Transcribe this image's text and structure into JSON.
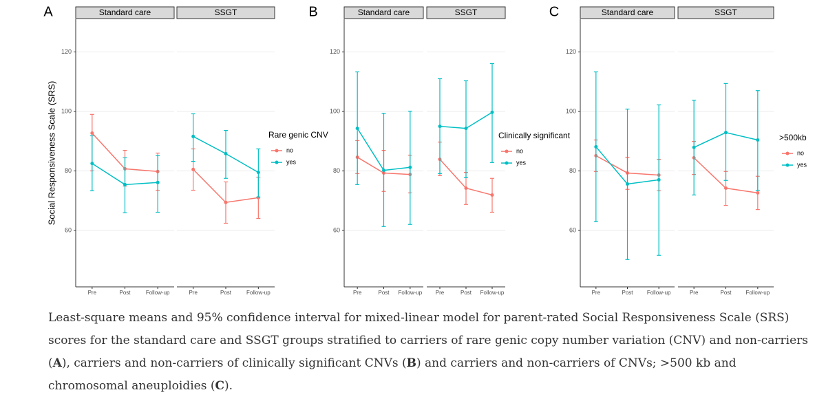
{
  "chart_data": [
    {
      "type": "line",
      "panel": "A",
      "ylabel": "Social Responsiveness Scale (SRS)",
      "legend_title": "Rare genic CNV",
      "facets": [
        "Standard care",
        "SSGT"
      ],
      "categories": [
        "Pre",
        "Post",
        "Follow-up"
      ],
      "ylim": [
        41,
        131
      ],
      "yticks": [
        60,
        80,
        100,
        120
      ],
      "grid": true,
      "series": [
        {
          "name": "no",
          "color": "#F8766D",
          "facets": [
            {
              "values": [
                92.7,
                80.7,
                79.8
              ],
              "lower": [
                80,
                74.9,
                73.5
              ],
              "upper": [
                99,
                86.9,
                86
              ]
            },
            {
              "values": [
                80.5,
                69.4,
                71
              ],
              "lower": [
                73.5,
                62.4,
                64
              ],
              "upper": [
                87.4,
                76.3,
                77.9
              ]
            }
          ]
        },
        {
          "name": "yes",
          "color": "#00BFC4",
          "facets": [
            {
              "values": [
                82.5,
                75.4,
                76.1
              ],
              "lower": [
                73.3,
                65.9,
                66.1
              ],
              "upper": [
                91.8,
                84.4,
                85.1
              ]
            },
            {
              "values": [
                91.6,
                85.8,
                79.5
              ],
              "lower": [
                83.2,
                77.5,
                71.2
              ],
              "upper": [
                99.2,
                93.6,
                87.4
              ]
            }
          ]
        }
      ]
    },
    {
      "type": "line",
      "panel": "B",
      "legend_title": "Clinically significant",
      "facets": [
        "Standard care",
        "SSGT"
      ],
      "categories": [
        "Pre",
        "Post",
        "Follow-up"
      ],
      "ylim": [
        41,
        131
      ],
      "yticks": [
        60,
        80,
        100,
        120
      ],
      "grid": true,
      "series": [
        {
          "name": "no",
          "color": "#F8766D",
          "facets": [
            {
              "values": [
                84.6,
                79.3,
                78.8
              ],
              "lower": [
                79.1,
                73.1,
                72.6
              ],
              "upper": [
                90.2,
                86.9,
                85.3
              ]
            },
            {
              "values": [
                83.9,
                74.2,
                71.9
              ],
              "lower": [
                78.4,
                68.7,
                66.1
              ],
              "upper": [
                89.7,
                79.5,
                77.5
              ]
            }
          ]
        },
        {
          "name": "yes",
          "color": "#00BFC4",
          "facets": [
            {
              "values": [
                94.3,
                80.2,
                81.2
              ],
              "lower": [
                75.4,
                61.3,
                62
              ],
              "upper": [
                113.3,
                99.4,
                100.1
              ]
            },
            {
              "values": [
                95,
                94.3,
                99.7
              ],
              "lower": [
                79.1,
                77.7,
                82.8
              ],
              "upper": [
                111,
                110.3,
                116.1
              ]
            }
          ]
        }
      ]
    },
    {
      "type": "line",
      "panel": "C",
      "legend_title": ">500kb",
      "facets": [
        "Standard care",
        "SSGT"
      ],
      "categories": [
        "Pre",
        "Post",
        "Follow-up"
      ],
      "ylim": [
        41,
        131
      ],
      "yticks": [
        60,
        80,
        100,
        120
      ],
      "grid": true,
      "series": [
        {
          "name": "no",
          "color": "#F8766D",
          "facets": [
            {
              "values": [
                85.1,
                79.3,
                78.6
              ],
              "lower": [
                79.8,
                73.8,
                73.3
              ],
              "upper": [
                90.4,
                84.6,
                83.9
              ]
            },
            {
              "values": [
                84.4,
                74.2,
                72.6
              ],
              "lower": [
                78.8,
                68.4,
                67
              ],
              "upper": [
                89.9,
                79.8,
                78.2
              ]
            }
          ]
        },
        {
          "name": "yes",
          "color": "#00BFC4",
          "facets": [
            {
              "values": [
                88.1,
                75.6,
                77
              ],
              "lower": [
                62.9,
                50.2,
                51.6
              ],
              "upper": [
                113.3,
                100.8,
                102.2
              ]
            },
            {
              "values": [
                87.9,
                92.9,
                90.4
              ],
              "lower": [
                71.9,
                76.8,
                73.5
              ],
              "upper": [
                103.8,
                109.4,
                107
              ]
            }
          ]
        }
      ]
    }
  ],
  "caption": [
    "Least-square means and 95% confidence interval for mixed-linear model for parent-rated Social Responsiveness Scale (SRS) scores for the standard care and SSGT groups stratified to carriers of rare genic copy number variation (CNV) and non-carriers (",
    "A",
    "), carriers and non-carriers of clinically significant CNVs (",
    "B",
    ") and carriers and non-carriers of CNVs; >500 kb and chromosomal aneuploidies (",
    "C",
    ")."
  ]
}
